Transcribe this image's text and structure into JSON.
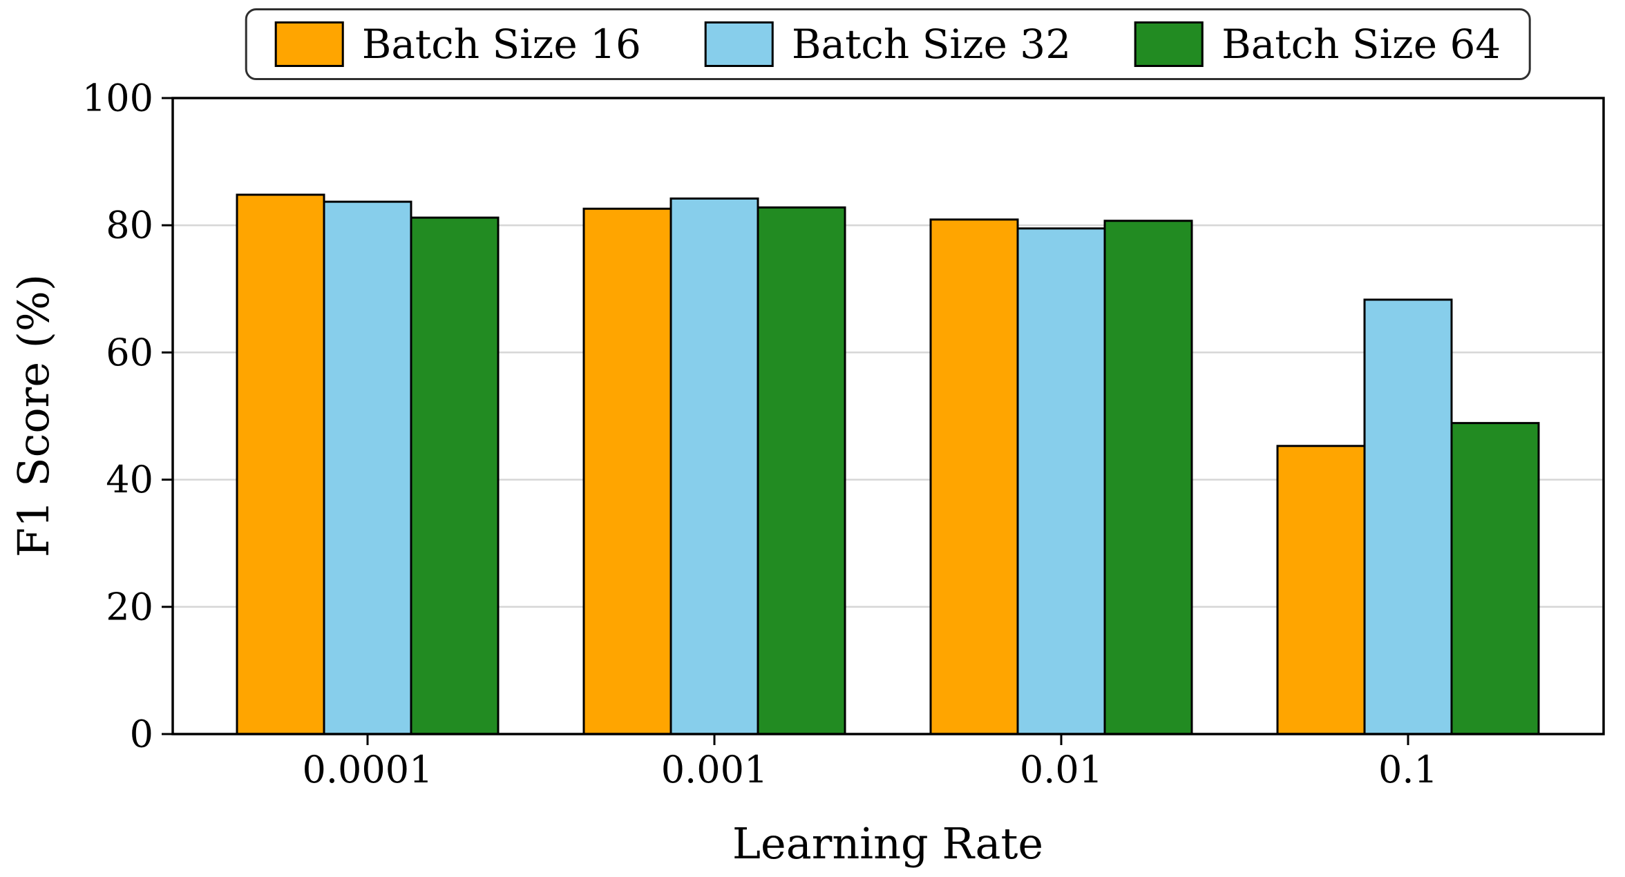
{
  "legend": {
    "items": [
      {
        "label": "Batch Size 16",
        "color": "#FFA500"
      },
      {
        "label": "Batch Size 32",
        "color": "#87CEEB"
      },
      {
        "label": "Batch Size 64",
        "color": "#228B22"
      }
    ]
  },
  "chart_data": {
    "type": "bar",
    "title": "",
    "xlabel": "Learning Rate",
    "ylabel": "F1 Score (%)",
    "categories": [
      "0.0001",
      "0.001",
      "0.01",
      "0.1"
    ],
    "series": [
      {
        "name": "Batch Size 16",
        "color": "#FFA500",
        "values": [
          84.8,
          82.6,
          80.9,
          45.3
        ]
      },
      {
        "name": "Batch Size 32",
        "color": "#87CEEB",
        "values": [
          83.7,
          84.2,
          79.5,
          68.3
        ]
      },
      {
        "name": "Batch Size 64",
        "color": "#228B22",
        "values": [
          81.2,
          82.8,
          80.7,
          48.9
        ]
      }
    ],
    "ylim": [
      0,
      100
    ],
    "yticks": [
      0,
      20,
      40,
      60,
      80,
      100
    ],
    "grid": "horizontal",
    "grid_color": "#d6d6d6",
    "bar_edge_color": "#000000",
    "axis_color": "#000000",
    "legend_position": "top-center"
  }
}
